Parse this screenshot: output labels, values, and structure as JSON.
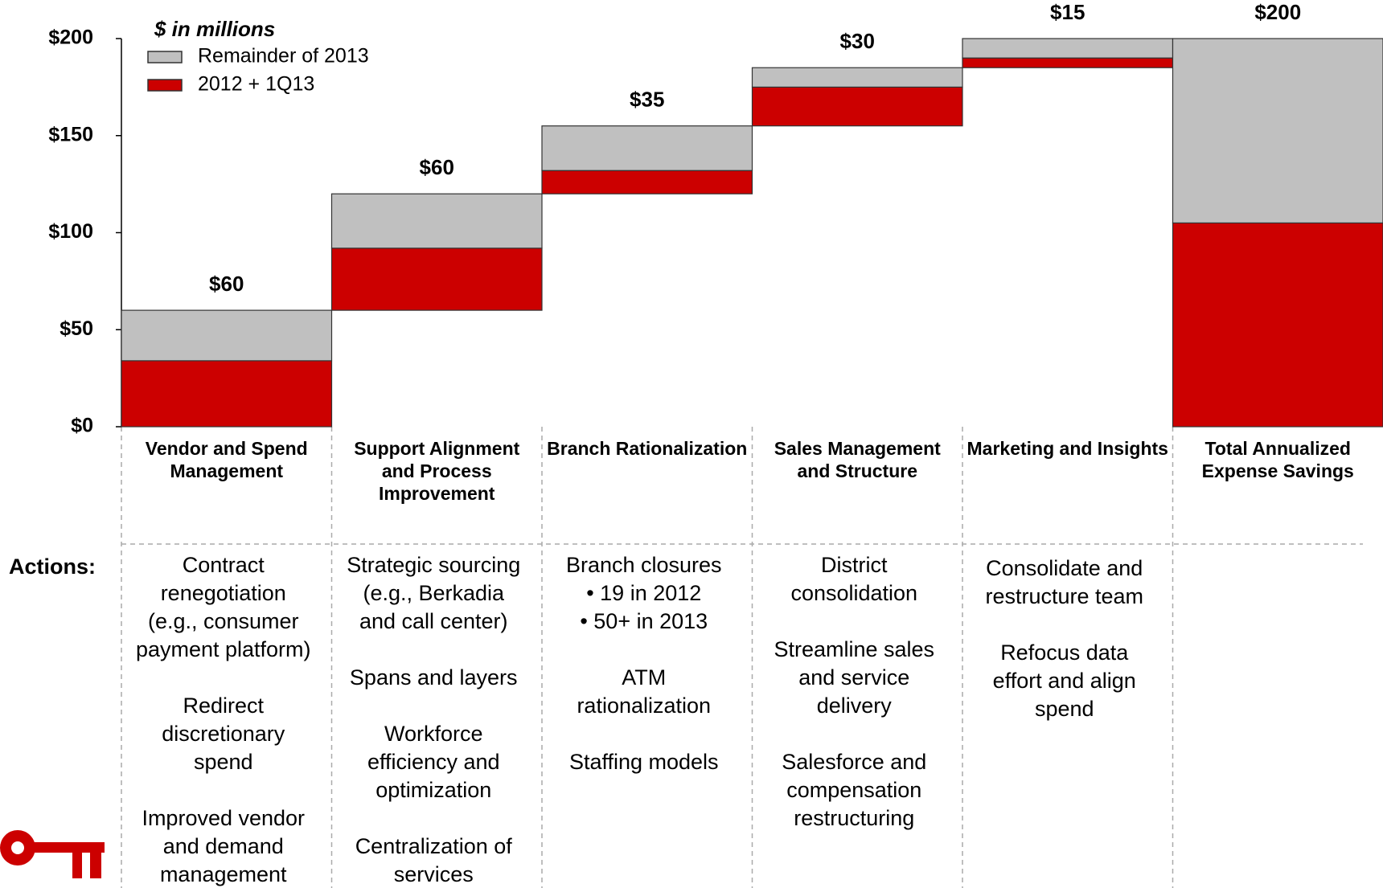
{
  "chart_data": {
    "type": "waterfall",
    "subtitle": "$ in millions",
    "categories": [
      [
        "Vendor and Spend",
        "Management"
      ],
      [
        "Support Alignment",
        "and Process",
        "Improvement"
      ],
      [
        "Branch Rationalization"
      ],
      [
        "Sales Management",
        "and Structure"
      ],
      [
        "Marketing and Insights"
      ],
      [
        "Total Annualized",
        "Expense Savings"
      ]
    ],
    "series": [
      {
        "name": "2012 + 1Q13",
        "color": "#cc0000",
        "values": [
          34,
          32,
          12,
          20,
          5,
          105
        ]
      },
      {
        "name": "Remainder of 2013",
        "color": "#c0c0c0",
        "values": [
          26,
          28,
          23,
          10,
          10,
          95
        ]
      }
    ],
    "totals": [
      60,
      60,
      35,
      30,
      15,
      200
    ],
    "total_labels": [
      "$60",
      "$60",
      "$35",
      "$30",
      "$15",
      "$200"
    ],
    "ylim": [
      0,
      200
    ],
    "yticks": [
      {
        "value": 0,
        "label": "$0"
      },
      {
        "value": 50,
        "label": "$50"
      },
      {
        "value": 100,
        "label": "$100"
      },
      {
        "value": 150,
        "label": "$150"
      },
      {
        "value": 200,
        "label": "$200"
      }
    ],
    "grid": false,
    "legend": "upper-left"
  },
  "actions": {
    "label": "Actions:",
    "columns": [
      [
        [
          "Contract",
          "renegotiation",
          "(e.g., consumer",
          "payment platform)"
        ],
        [
          "Redirect",
          "discretionary",
          "spend"
        ],
        [
          "Improved vendor",
          "and demand",
          "management"
        ]
      ],
      [
        [
          "Strategic sourcing",
          "(e.g., Berkadia",
          "and call center)"
        ],
        [
          "Spans and layers"
        ],
        [
          "Workforce",
          "efficiency and",
          "optimization"
        ],
        [
          "Centralization of",
          "services"
        ]
      ],
      [
        [
          "Branch closures",
          "•   19 in 2012",
          "•   50+ in 2013"
        ],
        [
          "ATM",
          "rationalization"
        ],
        [
          "Staffing models"
        ]
      ],
      [
        [
          "District",
          "consolidation"
        ],
        [
          "Streamline sales",
          "and service",
          "delivery"
        ],
        [
          "Salesforce and",
          "compensation",
          "restructuring"
        ]
      ],
      [
        [
          "Consolidate and",
          "restructure team"
        ],
        [
          "Refocus data",
          "effort and align",
          "spend"
        ]
      ],
      []
    ]
  }
}
